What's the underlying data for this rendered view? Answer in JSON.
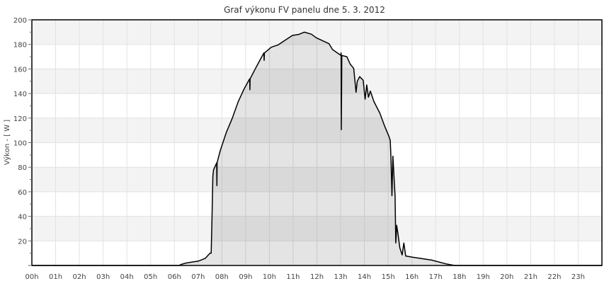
{
  "chart_data": {
    "type": "area",
    "title": "Graf výkonu FV panelu dne 5. 3. 2012",
    "xlabel": "",
    "ylabel": "Výkon - [ W ]",
    "xlim": [
      0,
      24
    ],
    "ylim": [
      0,
      200
    ],
    "grid": true,
    "x_tick_labels": [
      "00h",
      "01h",
      "02h",
      "03h",
      "04h",
      "05h",
      "06h",
      "07h",
      "08h",
      "09h",
      "10h",
      "11h",
      "12h",
      "13h",
      "14h",
      "15h",
      "16h",
      "17h",
      "18h",
      "19h",
      "20h",
      "21h",
      "22h",
      "23h"
    ],
    "y_tick_labels": [
      "20",
      "40",
      "60",
      "80",
      "100",
      "120",
      "140",
      "160",
      "180",
      "200"
    ],
    "y_ticks": [
      20,
      40,
      60,
      80,
      100,
      120,
      140,
      160,
      180,
      200
    ],
    "line_color": "#000000",
    "fill_color": "#e0e0e0",
    "band_color": "#f3f3f3",
    "x_unit": "hour of day",
    "points": [
      [
        0,
        0
      ],
      [
        6.2,
        0
      ],
      [
        6.3,
        1
      ],
      [
        6.5,
        2
      ],
      [
        7.0,
        3.5
      ],
      [
        7.3,
        5.8
      ],
      [
        7.5,
        10
      ],
      [
        7.55,
        10
      ],
      [
        7.58,
        33.6
      ],
      [
        7.62,
        73
      ],
      [
        7.65,
        78
      ],
      [
        7.78,
        83.6
      ],
      [
        7.79,
        65
      ],
      [
        7.8,
        83.6
      ],
      [
        7.85,
        87.6
      ],
      [
        7.94,
        94
      ],
      [
        8.19,
        108.5
      ],
      [
        8.44,
        120
      ],
      [
        8.69,
        133.5
      ],
      [
        8.94,
        144
      ],
      [
        9.17,
        152
      ],
      [
        9.18,
        143
      ],
      [
        9.19,
        152
      ],
      [
        9.43,
        161
      ],
      [
        9.68,
        170
      ],
      [
        9.77,
        173
      ],
      [
        9.78,
        167
      ],
      [
        9.79,
        173
      ],
      [
        10.08,
        177.7
      ],
      [
        10.37,
        179.6
      ],
      [
        10.67,
        183.5
      ],
      [
        10.97,
        187.3
      ],
      [
        11.22,
        188
      ],
      [
        11.47,
        190
      ],
      [
        11.77,
        188.3
      ],
      [
        11.97,
        185.4
      ],
      [
        12.51,
        180.6
      ],
      [
        12.66,
        175.8
      ],
      [
        13.01,
        171
      ],
      [
        13.02,
        173
      ],
      [
        13.03,
        110.5
      ],
      [
        13.05,
        171
      ],
      [
        13.26,
        170
      ],
      [
        13.4,
        164
      ],
      [
        13.55,
        160.4
      ],
      [
        13.65,
        141
      ],
      [
        13.7,
        150
      ],
      [
        13.8,
        153.7
      ],
      [
        13.95,
        150.8
      ],
      [
        14.03,
        135.4
      ],
      [
        14.1,
        147
      ],
      [
        14.17,
        137
      ],
      [
        14.25,
        142
      ],
      [
        14.4,
        133.5
      ],
      [
        14.65,
        124
      ],
      [
        14.84,
        114
      ],
      [
        15.04,
        104.7
      ],
      [
        15.09,
        101.8
      ],
      [
        15.12,
        87.6
      ],
      [
        15.16,
        56.7
      ],
      [
        15.2,
        89
      ],
      [
        15.29,
        56.7
      ],
      [
        15.32,
        18.3
      ],
      [
        15.36,
        32.7
      ],
      [
        15.41,
        26
      ],
      [
        15.49,
        14.4
      ],
      [
        15.59,
        8.6
      ],
      [
        15.66,
        18.3
      ],
      [
        15.74,
        7.7
      ],
      [
        16.04,
        6.7
      ],
      [
        16.83,
        4.4
      ],
      [
        17.43,
        1.3
      ],
      [
        17.8,
        0
      ],
      [
        24,
        0
      ]
    ]
  }
}
